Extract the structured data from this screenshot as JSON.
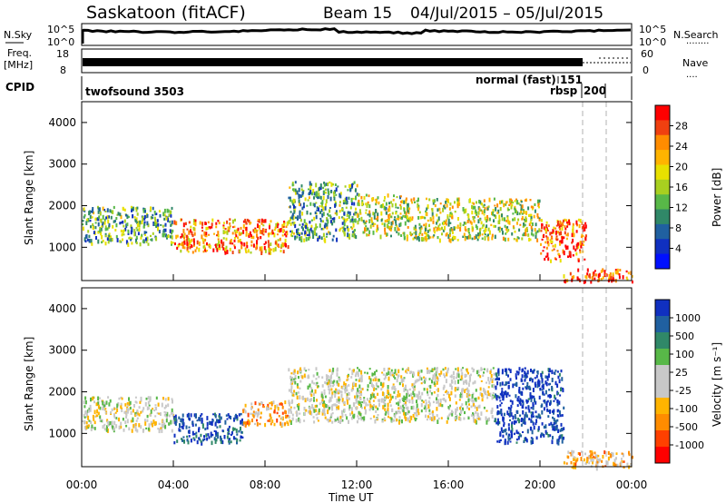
{
  "header": {
    "station": "Saskatoon (fitACF)",
    "beam": "Beam 15",
    "date_range": "04/Jul/2015 – 05/Jul/2015"
  },
  "strips": {
    "nsky": {
      "label": "N.Sky",
      "tick_top": "10^5",
      "tick_bottom": "10^0",
      "right_tick_top": "10^5",
      "right_tick_bottom": "10^0",
      "right_label": "N.Search",
      "right_dotted": "........"
    },
    "freq": {
      "label_line1": "Freq.",
      "label_line2": "[MHz]",
      "tick_top": "18",
      "tick_bottom": "8",
      "right_tick_top": "60",
      "right_tick_bottom": "0",
      "right_label": "Nave",
      "right_dotted": "...."
    },
    "cpid": {
      "label": "CPID",
      "mode_left": "twofsound 3503",
      "mode_right": "normal (fast) 151",
      "mode_rbsp": "rbsp",
      "mode_200": "200"
    }
  },
  "colorbars": {
    "power": {
      "label": "Power [dB]",
      "ticks": [
        "28",
        "24",
        "20",
        "16",
        "12",
        "8",
        "4"
      ],
      "colors": [
        "#ff0000",
        "#f04010",
        "#ff8c00",
        "#ffb400",
        "#e8e000",
        "#a8d020",
        "#58b848",
        "#308868",
        "#2060a0",
        "#1030c0",
        "#0010ff"
      ]
    },
    "velocity": {
      "label": "Velocity [m s⁻¹]",
      "ticks": [
        "1000",
        "500",
        "100",
        "25",
        "-25",
        "-100",
        "-500",
        "-1000"
      ],
      "colors": [
        "#1030c0",
        "#2060a0",
        "#308868",
        "#58b848",
        "#c8c8c8",
        "#c8c8c8",
        "#ffb400",
        "#ff8c00",
        "#ff4000",
        "#ff0000"
      ]
    }
  },
  "axes": {
    "ylabel": "Slant Range [km]",
    "xlabel": "Time UT",
    "yticks": [
      "1000",
      "2000",
      "3000",
      "4000"
    ],
    "xticks": [
      "00:00",
      "04:00",
      "08:00",
      "12:00",
      "16:00",
      "20:00",
      "00:00"
    ]
  },
  "chart_data": [
    {
      "type": "heatmap",
      "title": "",
      "quantity": "Power",
      "unit": "dB",
      "x_range_hours": [
        0,
        24
      ],
      "y_range_km": [
        200,
        4500
      ],
      "color_scale": [
        4,
        30
      ],
      "regions": [
        {
          "t0": 0,
          "t1": 4,
          "r0": 1100,
          "r1": 2000,
          "level": 14
        },
        {
          "t0": 4,
          "t1": 9,
          "r0": 900,
          "r1": 1700,
          "level": 24
        },
        {
          "t0": 9,
          "t1": 12,
          "r0": 1200,
          "r1": 2600,
          "level": 14
        },
        {
          "t0": 12,
          "t1": 14,
          "r0": 1300,
          "r1": 2300,
          "level": 18
        },
        {
          "t0": 14,
          "t1": 20,
          "r0": 1200,
          "r1": 2200,
          "level": 18
        },
        {
          "t0": 20,
          "t1": 22,
          "r0": 700,
          "r1": 1700,
          "level": 26
        },
        {
          "t0": 21,
          "t1": 24,
          "r0": 200,
          "r1": 500,
          "level": 26
        }
      ]
    },
    {
      "type": "heatmap",
      "title": "",
      "quantity": "Velocity",
      "unit": "m s-1",
      "x_range_hours": [
        0,
        24
      ],
      "y_range_km": [
        200,
        4500
      ],
      "color_scale": [
        -1000,
        1000
      ],
      "regions": [
        {
          "t0": 0,
          "t1": 4,
          "r0": 1100,
          "r1": 1900,
          "level": 0
        },
        {
          "t0": 4,
          "t1": 7,
          "r0": 800,
          "r1": 1500,
          "level": 800
        },
        {
          "t0": 7,
          "t1": 9,
          "r0": 1200,
          "r1": 1800,
          "level": -400
        },
        {
          "t0": 9,
          "t1": 18,
          "r0": 1300,
          "r1": 2600,
          "level": 0
        },
        {
          "t0": 18,
          "t1": 21,
          "r0": 800,
          "r1": 2600,
          "level": 900
        },
        {
          "t0": 21,
          "t1": 24,
          "r0": 200,
          "r1": 600,
          "level": -300
        }
      ]
    }
  ]
}
